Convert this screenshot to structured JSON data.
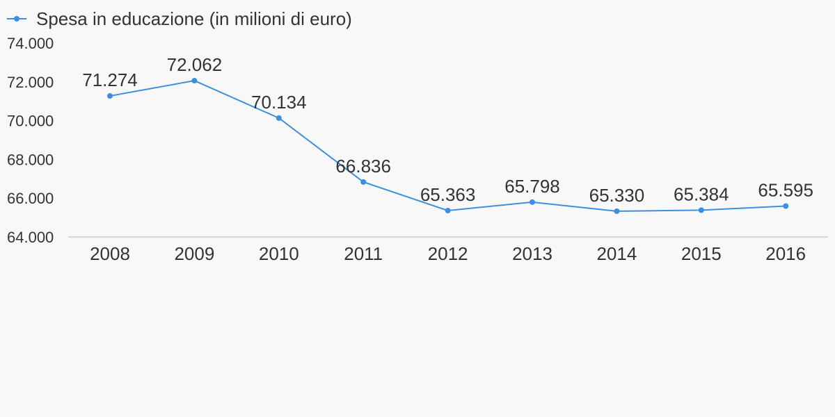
{
  "chart_data": {
    "type": "line",
    "categories": [
      "2008",
      "2009",
      "2010",
      "2011",
      "2012",
      "2013",
      "2014",
      "2015",
      "2016"
    ],
    "series": [
      {
        "name": "Spesa in educazione (in milioni di euro)",
        "values": [
          71274,
          72062,
          70134,
          66836,
          65363,
          65798,
          65330,
          65384,
          65595
        ],
        "labels": [
          "71.274",
          "72.062",
          "70.134",
          "66.836",
          "65.363",
          "65.798",
          "65.330",
          "65.384",
          "65.595"
        ]
      }
    ],
    "yticks": [
      {
        "value": 64000,
        "label": "64.000"
      },
      {
        "value": 66000,
        "label": "66.000"
      },
      {
        "value": 68000,
        "label": "68.000"
      },
      {
        "value": 70000,
        "label": "70.000"
      },
      {
        "value": 72000,
        "label": "72.000"
      },
      {
        "value": 74000,
        "label": "74.000"
      }
    ],
    "ylim": [
      64000,
      74000
    ],
    "grid": false,
    "legend": "top-left",
    "colors": {
      "series": "#3b8fe0",
      "axis": "#d6d6d6",
      "text": "#333333",
      "background": "#f8f8f8"
    }
  }
}
